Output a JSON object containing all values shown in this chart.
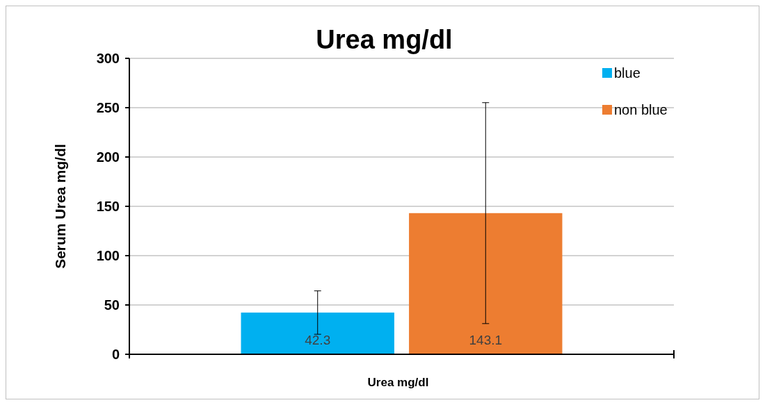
{
  "chart_data": {
    "type": "bar",
    "title": "Urea mg/dl",
    "xlabel": "Urea mg/dl",
    "ylabel": "Serum Urea mg/dl",
    "categories": [
      null
    ],
    "series": [
      {
        "name": "blue",
        "color": "#00b0f0",
        "values": [
          42.3
        ],
        "errors": [
          22
        ]
      },
      {
        "name": "non blue",
        "color": "#ed7d31",
        "values": [
          143.1
        ],
        "errors": [
          112
        ]
      }
    ],
    "ylim": [
      0,
      300
    ],
    "yticks": [
      0,
      50,
      100,
      150,
      200,
      250,
      300
    ],
    "grid": "y",
    "legend": "top right",
    "data_labels": true
  }
}
